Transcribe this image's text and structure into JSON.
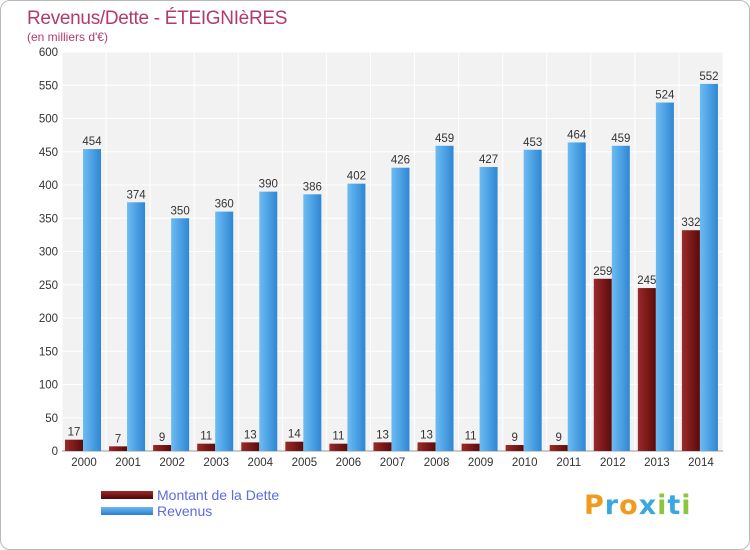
{
  "chart_data": {
    "type": "bar",
    "title": "Revenus/Dette - ÉTEIGNIèRES",
    "subtitle": "(en milliers d'€)",
    "categories": [
      "2000",
      "2001",
      "2002",
      "2003",
      "2004",
      "2005",
      "2006",
      "2007",
      "2008",
      "2009",
      "2010",
      "2011",
      "2012",
      "2013",
      "2014"
    ],
    "series": [
      {
        "name": "Montant de la Dette",
        "color": "#7a1a1a",
        "values": [
          17,
          7,
          9,
          11,
          13,
          14,
          11,
          13,
          13,
          11,
          9,
          9,
          259,
          245,
          332
        ]
      },
      {
        "name": "Revenus",
        "color": "#4da3e6",
        "values": [
          454,
          374,
          350,
          360,
          390,
          386,
          402,
          426,
          459,
          427,
          453,
          464,
          459,
          524,
          552
        ]
      }
    ],
    "ylim": [
      0,
      600
    ],
    "yticks": [
      0,
      50,
      100,
      150,
      200,
      250,
      300,
      350,
      400,
      450,
      500,
      550,
      600
    ],
    "grid": true,
    "legend_position": "bottom-left"
  },
  "logo": {
    "letters": [
      "P",
      "r",
      "o",
      "x",
      "i",
      "t",
      "i"
    ],
    "colors": [
      "#f29a1e",
      "#3aa8e0",
      "#f29a1e",
      "#3aa8e0",
      "#8cc63f",
      "#3aa8e0",
      "#8cc63f"
    ]
  }
}
